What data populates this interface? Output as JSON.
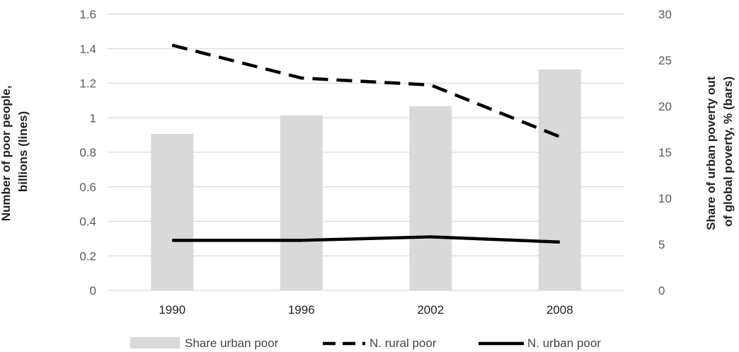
{
  "chart_data": {
    "type": "bar",
    "categories": [
      "1990",
      "1996",
      "2002",
      "2008"
    ],
    "ylabel_left": "Number of poor people, billions (lines)",
    "ylabel_right": "Share of urban poverty out of global poverty, % (bars)",
    "ylim_left": [
      0,
      1.6
    ],
    "ylim_right": [
      0,
      30
    ],
    "yticks_left": [
      "0",
      "0.2",
      "0.4",
      "0.6",
      "0.8",
      "1",
      "1.2",
      "1.4",
      "1.6"
    ],
    "yticks_right": [
      "0",
      "5",
      "10",
      "15",
      "20",
      "25",
      "30"
    ],
    "grid": true,
    "legend_position": "bottom",
    "series": [
      {
        "name": "Share urban poor",
        "type": "bar",
        "axis": "right",
        "color": "#d9d9d9",
        "values": [
          17,
          19,
          20,
          24
        ]
      },
      {
        "name": "N. rural poor",
        "type": "line",
        "axis": "left",
        "style": "dashed",
        "color": "#000000",
        "values": [
          1.42,
          1.23,
          1.19,
          0.89
        ]
      },
      {
        "name": "N. urban poor",
        "type": "line",
        "axis": "left",
        "style": "solid",
        "color": "#000000",
        "values": [
          0.29,
          0.29,
          0.31,
          0.28
        ]
      }
    ]
  }
}
